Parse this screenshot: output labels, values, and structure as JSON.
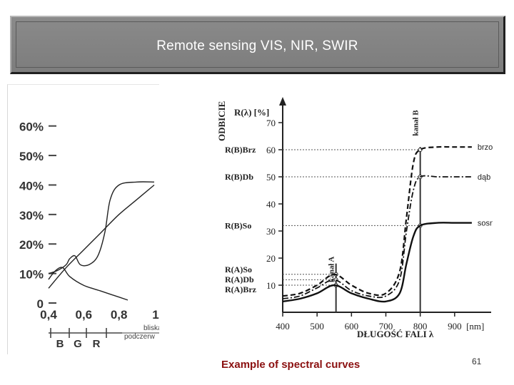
{
  "slide": {
    "title": "Remote sensing VIS, NIR, SWIR",
    "caption": "Example of spectral curves",
    "page_number": "61"
  },
  "chart_data": [
    {
      "type": "line",
      "ylabel": "",
      "xlabel": "",
      "y_ticks": [
        "0",
        "10%",
        "20%",
        "30%",
        "40%",
        "50%",
        "60%"
      ],
      "x_ticks": [
        "0,4",
        "0,6",
        "0,8",
        "1"
      ],
      "band_labels": [
        "B",
        "G",
        "R"
      ],
      "extra_labels": [
        "bliska",
        "podczerw"
      ],
      "xlim": [
        0.4,
        1.0
      ],
      "ylim": [
        0,
        0.65
      ],
      "series": [
        {
          "values": [
            [
              0.4,
              0.05
            ],
            [
              0.5,
              0.12
            ],
            [
              0.6,
              0.18
            ],
            [
              0.7,
              0.24
            ],
            [
              0.8,
              0.3
            ],
            [
              0.9,
              0.35
            ],
            [
              1.0,
              0.4
            ]
          ]
        },
        {
          "values": [
            [
              0.4,
              0.1
            ],
            [
              0.45,
              0.11
            ],
            [
              0.5,
              0.13
            ],
            [
              0.52,
              0.15
            ],
            [
              0.55,
              0.16
            ],
            [
              0.58,
              0.13
            ],
            [
              0.63,
              0.13
            ],
            [
              0.68,
              0.16
            ],
            [
              0.72,
              0.24
            ],
            [
              0.75,
              0.35
            ],
            [
              0.8,
              0.4
            ],
            [
              0.9,
              0.41
            ],
            [
              1.0,
              0.41
            ]
          ]
        },
        {
          "values": [
            [
              0.4,
              0.08
            ],
            [
              0.44,
              0.11
            ],
            [
              0.48,
              0.12
            ],
            [
              0.52,
              0.09
            ],
            [
              0.6,
              0.06
            ],
            [
              0.7,
              0.04
            ],
            [
              0.8,
              0.02
            ],
            [
              0.85,
              0.01
            ]
          ]
        }
      ]
    },
    {
      "type": "line",
      "ylabel": "ODBICIE",
      "yunit": "R(λ) [%]",
      "xlabel": "DŁUGOŚĆ FALI λ",
      "x_ticks": [
        "400",
        "500",
        "600",
        "700",
        "800",
        "900",
        "[nm]"
      ],
      "y_ticks": [
        "10",
        "20",
        "30",
        "40",
        "50",
        "60",
        "70"
      ],
      "xlim": [
        400,
        1000
      ],
      "ylim": [
        0,
        75
      ],
      "channel_a": "kanał A",
      "channel_b": "kanał B",
      "markers": {
        "b_brz": "R(B)Brz",
        "b_db": "R(B)Db",
        "b_so": "R(B)So",
        "a_so": "R(A)So",
        "a_db": "R(A)Db",
        "a_brz": "R(A)Brz"
      },
      "series": [
        {
          "name": "brzoza",
          "style": "dashed",
          "values": [
            [
              400,
              6
            ],
            [
              450,
              7
            ],
            [
              500,
              10
            ],
            [
              550,
              14
            ],
            [
              600,
              10
            ],
            [
              650,
              7
            ],
            [
              700,
              7
            ],
            [
              740,
              15
            ],
            [
              760,
              35
            ],
            [
              780,
              55
            ],
            [
              800,
              60
            ],
            [
              850,
              61
            ],
            [
              900,
              61
            ],
            [
              950,
              61
            ]
          ]
        },
        {
          "name": "dąb",
          "style": "dash-dot",
          "values": [
            [
              400,
              5
            ],
            [
              450,
              6
            ],
            [
              500,
              9
            ],
            [
              550,
              12
            ],
            [
              600,
              8
            ],
            [
              650,
              6
            ],
            [
              700,
              6
            ],
            [
              740,
              12
            ],
            [
              760,
              30
            ],
            [
              780,
              45
            ],
            [
              800,
              50
            ],
            [
              850,
              50
            ],
            [
              900,
              50
            ],
            [
              950,
              50
            ]
          ]
        },
        {
          "name": "sosna",
          "style": "solid",
          "values": [
            [
              400,
              4
            ],
            [
              450,
              5
            ],
            [
              500,
              7
            ],
            [
              550,
              10
            ],
            [
              600,
              7
            ],
            [
              650,
              5
            ],
            [
              700,
              4
            ],
            [
              740,
              7
            ],
            [
              760,
              18
            ],
            [
              780,
              28
            ],
            [
              800,
              32
            ],
            [
              850,
              33
            ],
            [
              900,
              33
            ],
            [
              950,
              33
            ]
          ]
        }
      ]
    }
  ]
}
